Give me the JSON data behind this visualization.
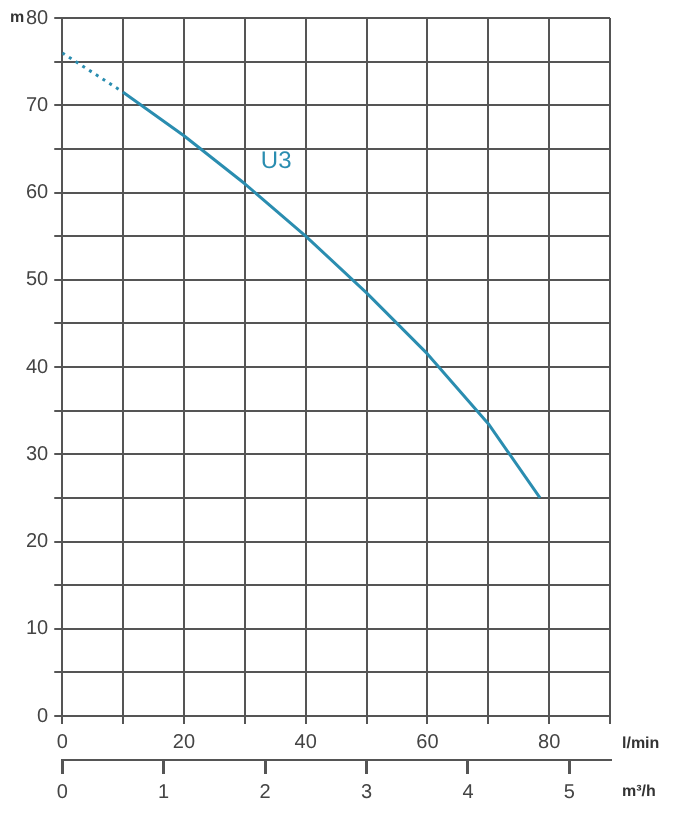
{
  "chart_data": {
    "type": "line",
    "xlabel": "l/min",
    "x2label": "m³/h",
    "ylabel": "m",
    "xlim": [
      0,
      90
    ],
    "xticks": [
      0,
      {
        "value": 10,
        "label": null
      },
      20,
      {
        "value": 30,
        "label": null
      },
      40,
      {
        "value": 50,
        "label": null
      },
      60,
      {
        "value": 70,
        "label": null
      },
      80,
      {
        "value": 90,
        "label": null
      }
    ],
    "x2lim": [
      0,
      5.4
    ],
    "x2ticks": [
      0,
      1,
      2,
      3,
      4,
      5
    ],
    "ylim": [
      0,
      80
    ],
    "yticks": [
      0,
      {
        "value": 5,
        "label": null
      },
      10,
      {
        "value": 15,
        "label": null
      },
      20,
      {
        "value": 25,
        "label": null
      },
      30,
      {
        "value": 35,
        "label": null
      },
      40,
      {
        "value": 45,
        "label": null
      },
      50,
      {
        "value": 55,
        "label": null
      },
      60,
      {
        "value": 65,
        "label": null
      },
      70,
      {
        "value": 75,
        "label": null
      },
      80
    ],
    "grid": true,
    "legend": false,
    "marker": "none",
    "series": [
      {
        "color": "#2a8db0",
        "line_style": "dotted",
        "x": [
          0,
          10
        ],
        "values": [
          76,
          71.5
        ]
      },
      {
        "name": "U3",
        "color": "#2a8db0",
        "line_style": "solid",
        "x": [
          10,
          20,
          30,
          40,
          50,
          60,
          70,
          78.5
        ],
        "values": [
          71.5,
          66.5,
          61,
          55,
          48.5,
          41.5,
          33.5,
          25
        ]
      }
    ]
  }
}
